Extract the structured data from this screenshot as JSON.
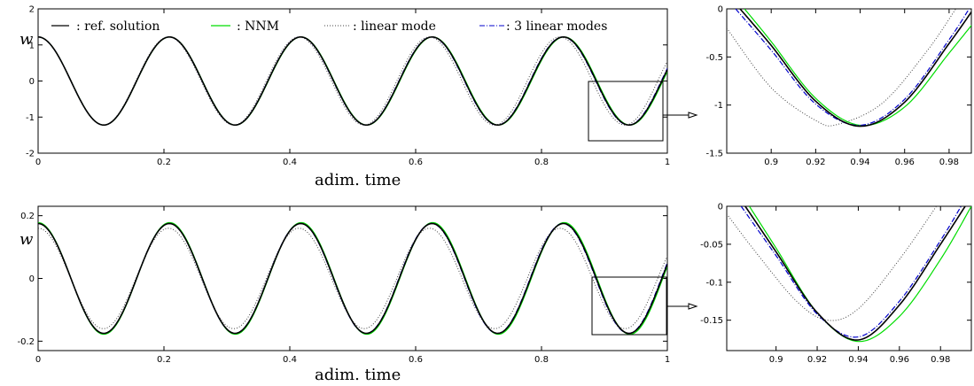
{
  "legend": [
    {
      "label": ": ref. solution",
      "color": "#000000",
      "dash": "solid"
    },
    {
      "label": ": NNM",
      "color": "#00dd00",
      "dash": "solid"
    },
    {
      "label": ": linear mode",
      "color": "#444444",
      "dash": "dotted"
    },
    {
      "label": ": 3 linear modes",
      "color": "#0000cc",
      "dash": "dashdot"
    }
  ],
  "chart_data": [
    {
      "type": "line",
      "xlabel": "adim. time",
      "ylabel": "w",
      "xlim": [
        0,
        1
      ],
      "ylim": [
        -2,
        2
      ],
      "xticks": [
        "0",
        "0.2",
        "0.4",
        "0.6",
        "0.8",
        "1"
      ],
      "yticks": [
        "2",
        "1",
        "0",
        "-1",
        "-2"
      ],
      "series": [
        {
          "name": "ref. solution",
          "color": "#000000",
          "amplitude": 1.22,
          "period": 0.2087
        },
        {
          "name": "NNM",
          "color": "#00dd00",
          "amplitude": 1.22,
          "period": 0.209
        },
        {
          "name": "linear mode",
          "color": "#444444",
          "amplitude": 1.22,
          "period": 0.2073
        },
        {
          "name": "3 linear modes",
          "color": "#0000cc",
          "amplitude": 1.22,
          "period": 0.2085
        }
      ]
    },
    {
      "type": "line",
      "xlabel": "",
      "ylabel": "",
      "xlim": [
        0.88,
        0.99
      ],
      "ylim": [
        -1.5,
        0
      ],
      "xticks": [
        "0.9",
        "0.92",
        "0.94",
        "0.96",
        "0.98"
      ],
      "yticks": [
        "0",
        "-0.5",
        "-1",
        "-1.5"
      ],
      "series": [
        {
          "name": "ref. solution",
          "color": "#000000",
          "points": [
            [
              0.886,
              0
            ],
            [
              0.9,
              -0.38
            ],
            [
              0.92,
              -0.96
            ],
            [
              0.94,
              -1.22
            ],
            [
              0.96,
              -0.97
            ],
            [
              0.98,
              -0.36
            ],
            [
              0.991,
              0
            ]
          ]
        },
        {
          "name": "NNM",
          "color": "#00dd00",
          "points": [
            [
              0.888,
              0
            ],
            [
              0.9,
              -0.34
            ],
            [
              0.92,
              -0.93
            ],
            [
              0.94,
              -1.21
            ],
            [
              0.96,
              -1.02
            ],
            [
              0.98,
              -0.46
            ],
            [
              0.996,
              0
            ]
          ]
        },
        {
          "name": "linear mode",
          "color": "#444444",
          "points": [
            [
              0.88,
              -0.2
            ],
            [
              0.9,
              -0.82
            ],
            [
              0.92,
              -1.16
            ],
            [
              0.93,
              -1.2
            ],
            [
              0.95,
              -0.98
            ],
            [
              0.97,
              -0.44
            ],
            [
              0.983,
              0
            ]
          ]
        },
        {
          "name": "3 linear modes",
          "color": "#0000cc",
          "points": [
            [
              0.884,
              0
            ],
            [
              0.9,
              -0.43
            ],
            [
              0.92,
              -0.99
            ],
            [
              0.94,
              -1.21
            ],
            [
              0.96,
              -0.94
            ],
            [
              0.98,
              -0.32
            ],
            [
              0.989,
              0
            ]
          ]
        }
      ]
    },
    {
      "type": "line",
      "xlabel": "adim. time",
      "ylabel": "w",
      "xlim": [
        0,
        1
      ],
      "ylim": [
        -0.23,
        0.23
      ],
      "xticks": [
        "0",
        "0.2",
        "0.4",
        "0.6",
        "0.8",
        "1"
      ],
      "yticks": [
        "0.2",
        "0",
        "-0.2"
      ],
      "series": [
        {
          "name": "ref. solution",
          "color": "#000000",
          "amplitude": 0.175,
          "period": 0.2087
        },
        {
          "name": "NNM",
          "color": "#00dd00",
          "amplitude": 0.178,
          "period": 0.209
        },
        {
          "name": "linear mode",
          "color": "#444444",
          "amplitude": 0.16,
          "period": 0.2073
        },
        {
          "name": "3 linear modes",
          "color": "#0000cc",
          "amplitude": 0.175,
          "period": 0.2085
        }
      ]
    },
    {
      "type": "line",
      "xlabel": "",
      "ylabel": "",
      "xlim": [
        0.876,
        0.995
      ],
      "ylim": [
        -0.19,
        0
      ],
      "xticks": [
        "0.9",
        "0.92",
        "0.94",
        "0.96",
        "0.98"
      ],
      "yticks": [
        "0",
        "-0.05",
        "-0.1",
        "-0.15"
      ],
      "series": [
        {
          "name": "ref. solution",
          "color": "#000000",
          "points": [
            [
              0.885,
              0
            ],
            [
              0.9,
              -0.06
            ],
            [
              0.92,
              -0.14
            ],
            [
              0.94,
              -0.176
            ],
            [
              0.96,
              -0.13
            ],
            [
              0.98,
              -0.05
            ],
            [
              0.992,
              0
            ]
          ]
        },
        {
          "name": "NNM",
          "color": "#00dd00",
          "points": [
            [
              0.887,
              0
            ],
            [
              0.9,
              -0.055
            ],
            [
              0.92,
              -0.14
            ],
            [
              0.94,
              -0.178
            ],
            [
              0.96,
              -0.145
            ],
            [
              0.98,
              -0.07
            ],
            [
              0.995,
              0
            ]
          ]
        },
        {
          "name": "linear mode",
          "color": "#444444",
          "points": [
            [
              0.876,
              -0.01
            ],
            [
              0.89,
              -0.06
            ],
            [
              0.91,
              -0.125
            ],
            [
              0.925,
              -0.15
            ],
            [
              0.94,
              -0.135
            ],
            [
              0.96,
              -0.07
            ],
            [
              0.978,
              0
            ]
          ]
        },
        {
          "name": "3 linear modes",
          "color": "#0000cc",
          "points": [
            [
              0.883,
              0
            ],
            [
              0.9,
              -0.065
            ],
            [
              0.92,
              -0.142
            ],
            [
              0.94,
              -0.172
            ],
            [
              0.96,
              -0.125
            ],
            [
              0.98,
              -0.045
            ],
            [
              0.99,
              0
            ]
          ]
        }
      ]
    }
  ]
}
